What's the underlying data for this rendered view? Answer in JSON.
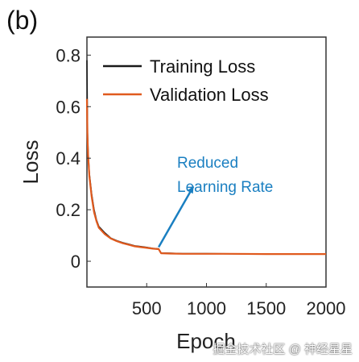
{
  "chart_data": {
    "type": "line",
    "panel_label": "(b)",
    "xlabel": "Epoch",
    "ylabel": "Loss",
    "xlim": [
      0,
      2000
    ],
    "ylim": [
      -0.1,
      0.87
    ],
    "xticks": [
      500,
      1000,
      1500,
      2000
    ],
    "yticks": [
      0,
      0.2,
      0.4,
      0.6,
      0.8
    ],
    "xtick_labels": [
      "500",
      "1000",
      "1500",
      "2000"
    ],
    "ytick_labels": [
      "0",
      "0.2",
      "0.4",
      "0.6",
      "0.8"
    ],
    "grid": false,
    "legend_position": "top-left",
    "series": [
      {
        "name": "Training Loss",
        "color": "#1a1a1a",
        "x": [
          0,
          5,
          10,
          20,
          40,
          60,
          80,
          100,
          150,
          200,
          250,
          300,
          350,
          400,
          450,
          500,
          550,
          600,
          620,
          700,
          800,
          1000,
          1200,
          1500,
          1800,
          2000
        ],
        "y": [
          0.78,
          0.5,
          0.42,
          0.34,
          0.26,
          0.2,
          0.16,
          0.135,
          0.11,
          0.09,
          0.08,
          0.072,
          0.066,
          0.06,
          0.057,
          0.054,
          0.05,
          0.048,
          0.032,
          0.031,
          0.03,
          0.03,
          0.029,
          0.029,
          0.029,
          0.029
        ]
      },
      {
        "name": "Validation Loss",
        "color": "#e05a1e",
        "x": [
          0,
          5,
          10,
          20,
          40,
          60,
          80,
          100,
          150,
          200,
          250,
          300,
          350,
          400,
          450,
          500,
          550,
          600,
          620,
          700,
          800,
          1000,
          1200,
          1500,
          1800,
          2000
        ],
        "y": [
          0.63,
          0.48,
          0.41,
          0.33,
          0.25,
          0.19,
          0.155,
          0.13,
          0.105,
          0.088,
          0.078,
          0.07,
          0.064,
          0.058,
          0.055,
          0.052,
          0.049,
          0.047,
          0.031,
          0.03,
          0.029,
          0.029,
          0.029,
          0.028,
          0.028,
          0.028
        ]
      }
    ],
    "annotations": [
      {
        "text_lines": [
          "Reduced",
          "Learning Rate"
        ],
        "color": "#1a7fc1",
        "arrow_from": [
          600,
          0.055
        ],
        "arrow_to": [
          890,
          0.29
        ]
      }
    ]
  },
  "watermark": "掘金技术社区 @ 神经星星"
}
